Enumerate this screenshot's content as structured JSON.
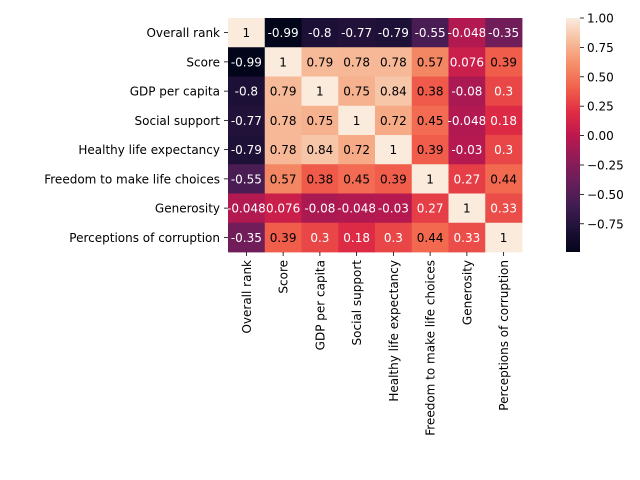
{
  "chart_data": {
    "type": "heatmap",
    "title": "",
    "xlabel": "",
    "ylabel": "",
    "x_labels": [
      "Overall rank",
      "Score",
      "GDP per capita",
      "Social support",
      "Healthy life expectancy",
      "Freedom to make life choices",
      "Generosity",
      "Perceptions of corruption"
    ],
    "y_labels": [
      "Overall rank",
      "Score",
      "GDP per capita",
      "Social support",
      "Healthy life expectancy",
      "Freedom to make life choices",
      "Generosity",
      "Perceptions of corruption"
    ],
    "values": [
      [
        1,
        -0.99,
        -0.8,
        -0.77,
        -0.79,
        -0.55,
        -0.048,
        -0.35
      ],
      [
        -0.99,
        1,
        0.79,
        0.78,
        0.78,
        0.57,
        0.076,
        0.39
      ],
      [
        -0.8,
        0.79,
        1,
        0.75,
        0.84,
        0.38,
        -0.08,
        0.3
      ],
      [
        -0.77,
        0.78,
        0.75,
        1,
        0.72,
        0.45,
        -0.048,
        0.18
      ],
      [
        -0.79,
        0.78,
        0.84,
        0.72,
        1,
        0.39,
        -0.03,
        0.3
      ],
      [
        -0.55,
        0.57,
        0.38,
        0.45,
        0.39,
        1,
        0.27,
        0.44
      ],
      [
        -0.048,
        0.076,
        -0.08,
        -0.048,
        -0.03,
        0.27,
        1,
        0.33
      ],
      [
        -0.35,
        0.39,
        0.3,
        0.18,
        0.3,
        0.44,
        0.33,
        1
      ]
    ],
    "value_labels": [
      [
        "1",
        "-0.99",
        "-0.8",
        "-0.77",
        "-0.79",
        "-0.55",
        "-0.048",
        "-0.35"
      ],
      [
        "-0.99",
        "1",
        "0.79",
        "0.78",
        "0.78",
        "0.57",
        "0.076",
        "0.39"
      ],
      [
        "-0.8",
        "0.79",
        "1",
        "0.75",
        "0.84",
        "0.38",
        "-0.08",
        "0.3"
      ],
      [
        "-0.77",
        "0.78",
        "0.75",
        "1",
        "0.72",
        "0.45",
        "-0.048",
        "0.18"
      ],
      [
        "-0.79",
        "0.78",
        "0.84",
        "0.72",
        "1",
        "0.39",
        "-0.03",
        "0.3"
      ],
      [
        "-0.55",
        "0.57",
        "0.38",
        "0.45",
        "0.39",
        "1",
        "0.27",
        "0.44"
      ],
      [
        "-0.048",
        "0.076",
        "-0.08",
        "-0.048",
        "-0.03",
        "0.27",
        "1",
        "0.33"
      ],
      [
        "-0.35",
        "0.39",
        "0.3",
        "0.18",
        "0.3",
        "0.44",
        "0.33",
        "1"
      ]
    ],
    "colormap": "rocket",
    "color_range": [
      -0.99,
      1
    ],
    "colorbar": {
      "placement": "right",
      "ticks": [
        1.0,
        0.75,
        0.5,
        0.25,
        0.0,
        -0.25,
        -0.5,
        -0.75
      ],
      "tick_labels": [
        "1.00",
        "0.75",
        "0.50",
        "0.25",
        "0.00",
        "−0.25",
        "−0.50",
        "−0.75"
      ]
    },
    "grid": false
  }
}
